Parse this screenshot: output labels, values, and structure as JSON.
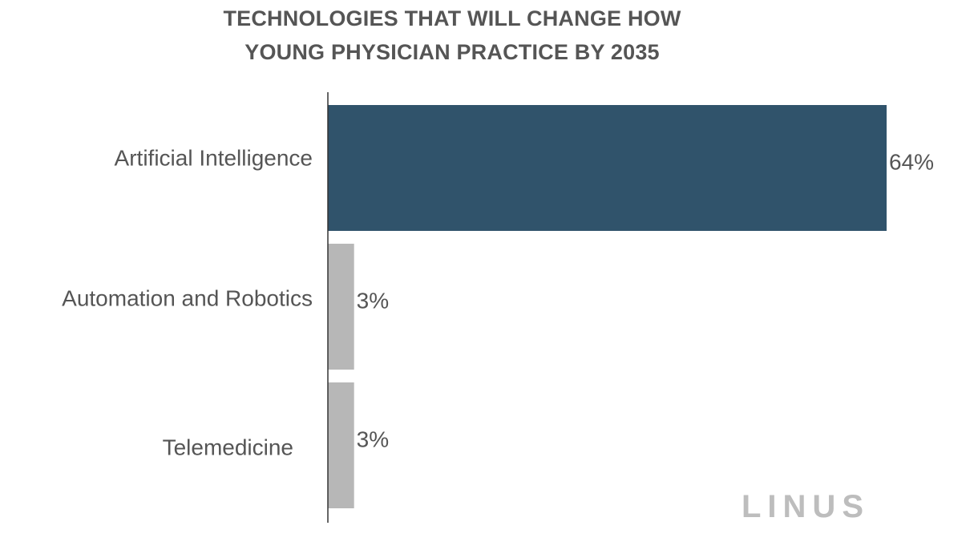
{
  "chart_data": {
    "type": "bar",
    "orientation": "horizontal",
    "title": [
      "TECHNOLOGIES THAT WILL CHANGE HOW",
      "YOUNG PHYSICIAN PRACTICE BY 2035"
    ],
    "categories": [
      "Artificial Intelligence",
      "Automation and Robotics",
      "Telemedicine"
    ],
    "values": [
      64,
      3,
      3
    ],
    "value_labels": [
      "64%",
      "3%",
      "3%"
    ],
    "xlim": [
      0,
      64
    ],
    "grid": false,
    "colors": {
      "highlight": "#30536b",
      "default": "#b7b7b7",
      "text": "#555555",
      "axis": "#333333"
    }
  },
  "brand": {
    "logo_text": "LINUS"
  }
}
